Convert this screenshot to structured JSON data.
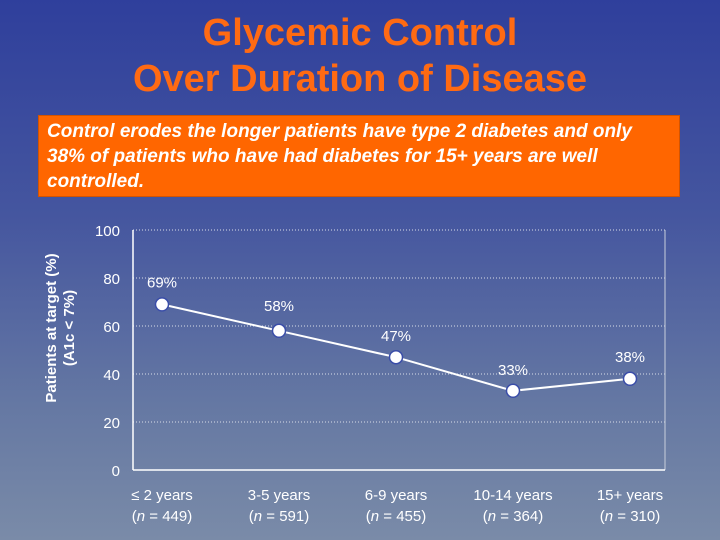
{
  "title_line1": "Glycemic Control",
  "title_line2": "Over Duration of Disease",
  "callout_text": "Control erodes the longer patients have type 2 diabetes and only 38% of patients who have had diabetes for 15+ years are well controlled.",
  "colors": {
    "title": "#ff6a13",
    "callout_bg": "#ff6600",
    "line": "#ffffff",
    "marker_fill": "#ffffff",
    "marker_stroke": "#3a4da8",
    "text": "#ffffff"
  },
  "chart_data": {
    "type": "line",
    "title": "",
    "ylabel_line1": "Patients at target (%)",
    "ylabel_line2": "(A1c < 7%)",
    "xlabel": "",
    "ylim": [
      0,
      100
    ],
    "yticks": [
      0,
      20,
      40,
      60,
      80,
      100
    ],
    "grid": true,
    "categories": [
      {
        "line1": "≤ 2 years",
        "n_italic": "n",
        "n_rest": " = 449)"
      },
      {
        "line1": "3-5 years",
        "n_italic": "n",
        "n_rest": " = 591)"
      },
      {
        "line1": "6-9 years",
        "n_italic": "n",
        "n_rest": " = 455)"
      },
      {
        "line1": "10-14 years",
        "n_italic": "n",
        "n_rest": " = 364)"
      },
      {
        "line1": "15+ years",
        "n_italic": "n",
        "n_rest": " = 310)"
      }
    ],
    "values": [
      69,
      58,
      47,
      33,
      38
    ],
    "data_labels": [
      "69%",
      "58%",
      "47%",
      "33%",
      "38%"
    ]
  }
}
